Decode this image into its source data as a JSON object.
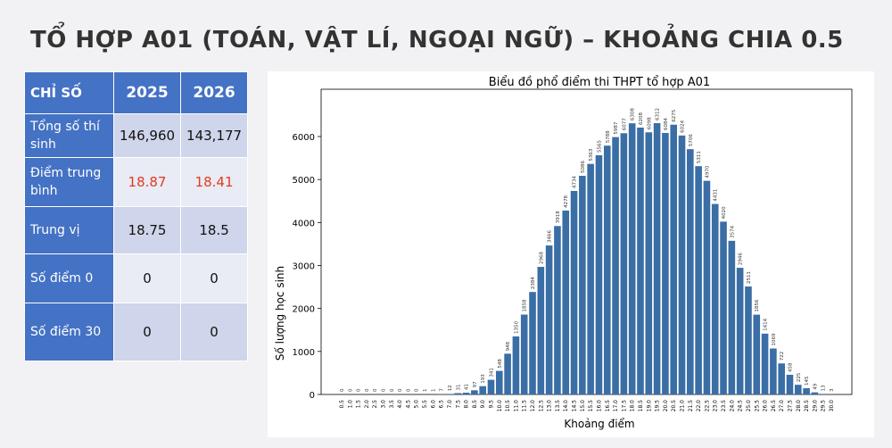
{
  "slide": {
    "title": "TỔ HỢP A01 (TOÁN, VẬT LÍ, NGOẠI NGỮ) – KHOẢNG CHIA 0.5"
  },
  "table": {
    "header": [
      "CHỈ SỐ",
      "2025",
      "2026"
    ],
    "rows": [
      [
        "Tổng số thí sinh",
        "146,960",
        "143,177"
      ],
      [
        "Điểm trung bình",
        "18.87",
        "18.41"
      ],
      [
        "Trung vị",
        "18.75",
        "18.5"
      ],
      [
        "Số điểm 0",
        "0",
        "0"
      ],
      [
        "Số điểm 30",
        "0",
        "0"
      ]
    ]
  },
  "chart_data": {
    "type": "bar",
    "title": "Biểu đồ phổ điểm thi THPT tổ hợp A01",
    "x_label": "Khoảng điểm",
    "y_label": "Số lượng học sinh",
    "categories": [
      "0.5",
      "1.0",
      "1.5",
      "2.0",
      "2.5",
      "3.0",
      "3.5",
      "4.0",
      "4.5",
      "5.0",
      "5.5",
      "6.0",
      "6.5",
      "7.0",
      "7.5",
      "8.0",
      "8.5",
      "9.0",
      "9.5",
      "10.0",
      "10.5",
      "11.0",
      "11.5",
      "12.0",
      "12.5",
      "13.0",
      "13.5",
      "14.0",
      "14.5",
      "15.0",
      "15.5",
      "16.0",
      "16.5",
      "17.0",
      "17.5",
      "18.0",
      "18.5",
      "19.0",
      "19.5",
      "20.0",
      "20.5",
      "21.0",
      "21.5",
      "22.0",
      "22.5",
      "23.0",
      "23.5",
      "24.0",
      "24.5",
      "25.0",
      "25.5",
      "26.0",
      "26.5",
      "27.0",
      "27.5",
      "28.0",
      "28.5",
      "29.0",
      "29.5",
      "30.0"
    ],
    "values": [
      0,
      0,
      0,
      0,
      0,
      0,
      0,
      0,
      0,
      0,
      1,
      1,
      7,
      12,
      31,
      41,
      97,
      193,
      341,
      548,
      948,
      1350,
      1858,
      2384,
      2968,
      3466,
      3918,
      4278,
      4734,
      5086,
      5363,
      5565,
      5788,
      5987,
      6077,
      6308,
      6208,
      6098,
      6312,
      6084,
      6275,
      6024,
      5706,
      5311,
      4970,
      4431,
      4020,
      3574,
      2946,
      2511,
      1856,
      1414,
      1069,
      722,
      458,
      225,
      145,
      49,
      13,
      3
    ],
    "color": "#3a6ea5",
    "ylim": [
      0,
      7100
    ],
    "yticks": [
      0,
      1000,
      2000,
      3000,
      4000,
      5000,
      6000
    ]
  }
}
